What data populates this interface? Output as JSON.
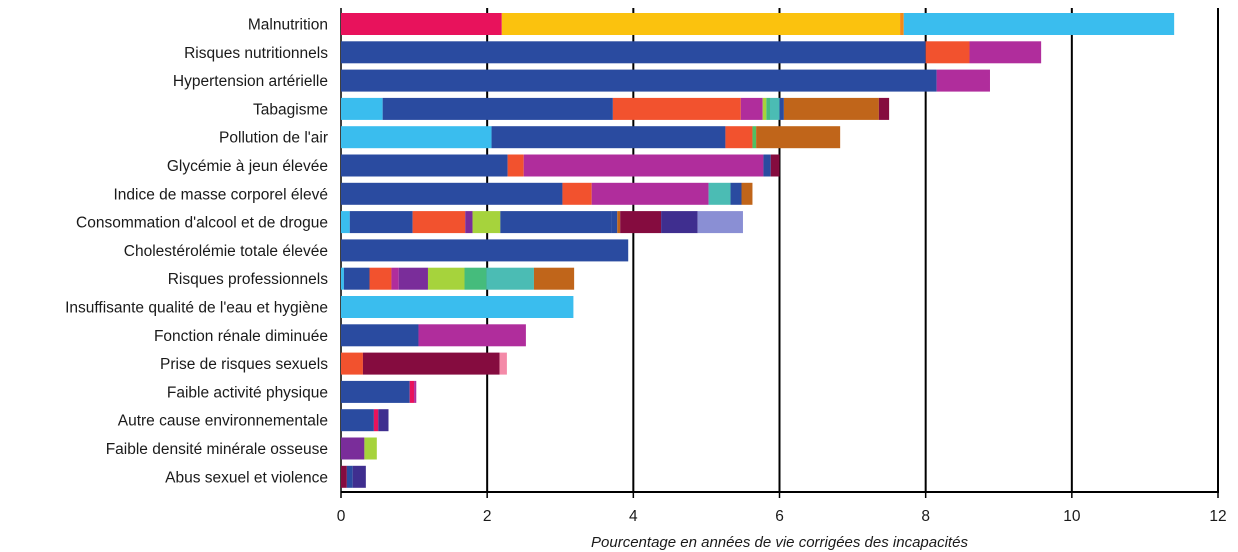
{
  "chart_data": {
    "type": "bar",
    "orientation": "horizontal",
    "stacked": true,
    "title": "",
    "xlabel": "Pourcentage en années de vie corrigées des incapacités",
    "ylabel": "",
    "xlim": [
      0,
      12
    ],
    "xticks": [
      0,
      2,
      4,
      6,
      8,
      10,
      12
    ],
    "grid": "vertical",
    "legend": "none",
    "categories": [
      "Malnutrition",
      "Risques nutritionnels",
      "Hypertension artérielle",
      "Tabagisme",
      "Pollution de l'air",
      "Glycémie à jeun élevée",
      "Indice de masse corporel élevé",
      "Consommation d'alcool et de drogue",
      "Cholestérolémie totale élevée",
      "Risques professionnels",
      "Insuffisante qualité de l'eau et hygiène",
      "Fonction rénale diminuée",
      "Prise de risques sexuels",
      "Faible activité physique",
      "Autre cause environnementale",
      "Faible densité minérale osseuse",
      "Abus sexuel et violence"
    ],
    "bars": [
      [
        [
          "#e8125c",
          2.2
        ],
        [
          "#fbc20e",
          5.45
        ],
        [
          "#f58a16",
          0.05
        ],
        [
          "#3abdee",
          3.7
        ]
      ],
      [
        [
          "#2a4ba0",
          8.0
        ],
        [
          "#f2522e",
          0.6
        ],
        [
          "#b02d9c",
          0.98
        ]
      ],
      [
        [
          "#2a4ba0",
          8.15
        ],
        [
          "#b02d9c",
          0.73
        ]
      ],
      [
        [
          "#3abdee",
          0.57
        ],
        [
          "#2a4ba0",
          3.15
        ],
        [
          "#f2522e",
          1.75
        ],
        [
          "#b02d9c",
          0.3
        ],
        [
          "#a6d33c",
          0.05
        ],
        [
          "#45bc7c",
          0.05
        ],
        [
          "#4bbcb4",
          0.13
        ],
        [
          "#2a4ba0",
          0.06
        ],
        [
          "#c0651a",
          1.3
        ],
        [
          "#850c3f",
          0.14
        ]
      ],
      [
        [
          "#3abdee",
          2.06
        ],
        [
          "#2a4ba0",
          3.2
        ],
        [
          "#f2522e",
          0.37
        ],
        [
          "#4fc063",
          0.05
        ],
        [
          "#c0651a",
          1.15
        ]
      ],
      [
        [
          "#2a4ba0",
          2.28
        ],
        [
          "#f2522e",
          0.22
        ],
        [
          "#b02d9c",
          3.28
        ],
        [
          "#2a4ba0",
          0.1
        ],
        [
          "#850c3f",
          0.12
        ]
      ],
      [
        [
          "#2a4ba0",
          3.03
        ],
        [
          "#f2522e",
          0.4
        ],
        [
          "#b02d9c",
          1.6
        ],
        [
          "#4bbcb4",
          0.3
        ],
        [
          "#2a4ba0",
          0.15
        ],
        [
          "#c0651a",
          0.15
        ]
      ],
      [
        [
          "#3abdee",
          0.12
        ],
        [
          "#2a4ba0",
          0.86
        ],
        [
          "#f2522e",
          0.72
        ],
        [
          "#7a2d9a",
          0.1
        ],
        [
          "#a6d33c",
          0.38
        ],
        [
          "#2a4ba0",
          1.52
        ],
        [
          "#2a4ba0",
          0.08
        ],
        [
          "#c0651a",
          0.04
        ],
        [
          "#850c3f",
          0.56
        ],
        [
          "#3f2e8f",
          0.5
        ],
        [
          "#8a8fd4",
          0.62
        ]
      ],
      [
        [
          "#2a4ba0",
          3.93
        ]
      ],
      [
        [
          "#3abdee",
          0.04
        ],
        [
          "#2a4ba0",
          0.35
        ],
        [
          "#f2522e",
          0.3
        ],
        [
          "#b02d9c",
          0.1
        ],
        [
          "#7a2d9a",
          0.4
        ],
        [
          "#a6d33c",
          0.5
        ],
        [
          "#45bc7c",
          0.3
        ],
        [
          "#4bbcb4",
          0.65
        ],
        [
          "#c0651a",
          0.55
        ]
      ],
      [
        [
          "#3abdee",
          3.18
        ]
      ],
      [
        [
          "#2a4ba0",
          1.06
        ],
        [
          "#b02d9c",
          1.47
        ]
      ],
      [
        [
          "#f2522e",
          0.3
        ],
        [
          "#850c3f",
          1.87
        ],
        [
          "#f48aa8",
          0.1
        ]
      ],
      [
        [
          "#2a4ba0",
          0.94
        ],
        [
          "#e8125c",
          0.06
        ],
        [
          "#b02d9c",
          0.03
        ]
      ],
      [
        [
          "#2a4ba0",
          0.45
        ],
        [
          "#e8125c",
          0.06
        ],
        [
          "#3f2e8f",
          0.14
        ]
      ],
      [
        [
          "#7a2d9a",
          0.32
        ],
        [
          "#a6d33c",
          0.17
        ]
      ],
      [
        [
          "#850c3f",
          0.08
        ],
        [
          "#2a4ba0",
          0.08
        ],
        [
          "#3f2e8f",
          0.18
        ]
      ]
    ]
  }
}
